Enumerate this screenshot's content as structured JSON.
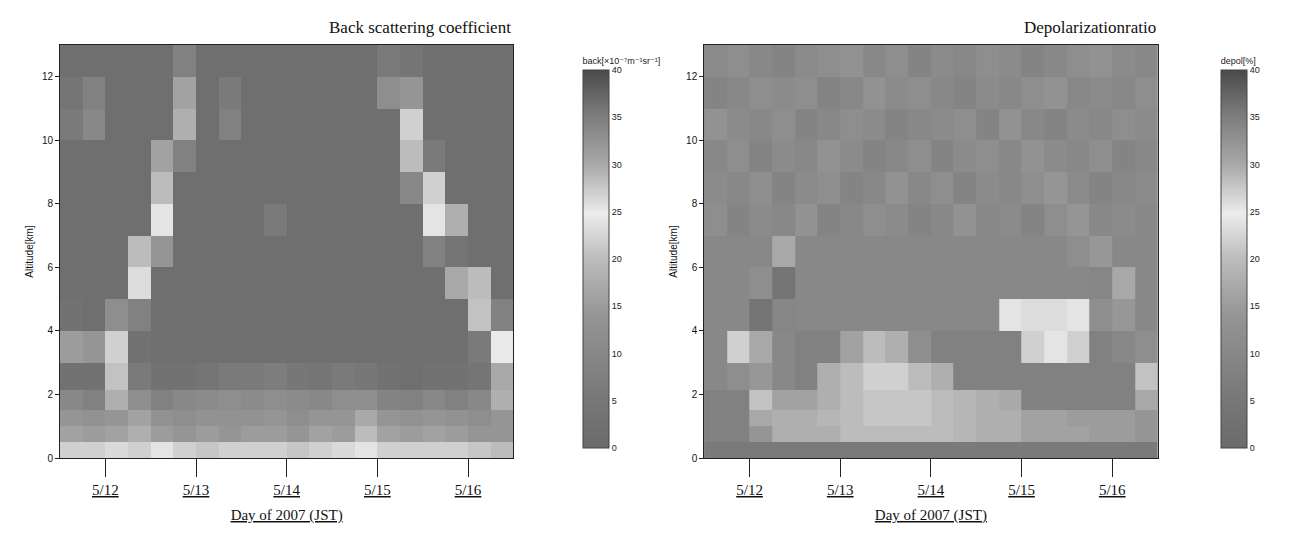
{
  "chart_data": [
    {
      "type": "heatmap",
      "title": "Back scattering coefficient",
      "x_label": "Day of 2007 (JST)",
      "y_label": "Altitude[km]",
      "x": [
        0.125,
        0.375,
        0.625,
        0.875,
        1.125,
        1.375,
        1.625,
        1.875,
        2.125,
        2.375,
        2.625,
        2.875,
        3.125,
        3.375,
        3.625,
        3.875,
        4.125,
        4.375,
        4.625,
        4.875
      ],
      "y": [
        0.25,
        0.75,
        1.25,
        1.75,
        2.5,
        3.5,
        4.5,
        5.5,
        6.5,
        7.5,
        8.5,
        9.5,
        10.5,
        11.5,
        12.5
      ],
      "z": [
        [
          22,
          22,
          23,
          22,
          24,
          22,
          21,
          22,
          22,
          22,
          21,
          22,
          23,
          24,
          22,
          22,
          22,
          22,
          21,
          20
        ],
        [
          16,
          15,
          16,
          18,
          15,
          14,
          15,
          14,
          15,
          15,
          14,
          16,
          15,
          20,
          16,
          15,
          16,
          15,
          14,
          14
        ],
        [
          14,
          13,
          14,
          16,
          13,
          12,
          13,
          13,
          13,
          14,
          12,
          14,
          14,
          17,
          14,
          13,
          14,
          13,
          12,
          14
        ],
        [
          10,
          8,
          18,
          12,
          8,
          10,
          11,
          12,
          11,
          12,
          11,
          10,
          12,
          12,
          9,
          8,
          10,
          8,
          10,
          18
        ],
        [
          3,
          3,
          28,
          6,
          3,
          3,
          4,
          6,
          6,
          7,
          5,
          4,
          6,
          5,
          3,
          2,
          3,
          3,
          4,
          30
        ],
        [
          15,
          14,
          22,
          3,
          2,
          2,
          2,
          2,
          2,
          2,
          2,
          2,
          2,
          2,
          2,
          2,
          2,
          2,
          6,
          25
        ],
        [
          3,
          2,
          12,
          8,
          2,
          2,
          2,
          2,
          2,
          2,
          2,
          2,
          2,
          2,
          2,
          2,
          2,
          2,
          28,
          8
        ],
        [
          2,
          2,
          2,
          26,
          2,
          2,
          2,
          2,
          2,
          2,
          2,
          2,
          2,
          2,
          2,
          2,
          2,
          30,
          20,
          2
        ],
        [
          2,
          2,
          2,
          20,
          14,
          2,
          2,
          2,
          2,
          2,
          2,
          2,
          2,
          2,
          2,
          2,
          8,
          36,
          2,
          2
        ],
        [
          2,
          2,
          2,
          2,
          24,
          2,
          2,
          2,
          2,
          6,
          2,
          2,
          2,
          2,
          2,
          2,
          24,
          18,
          2,
          2
        ],
        [
          2,
          2,
          2,
          2,
          20,
          2,
          2,
          2,
          2,
          2,
          2,
          2,
          2,
          2,
          2,
          10,
          22,
          2,
          2,
          2
        ],
        [
          2,
          2,
          2,
          2,
          16,
          8,
          2,
          2,
          2,
          2,
          2,
          2,
          2,
          2,
          2,
          20,
          6,
          2,
          2,
          2
        ],
        [
          6,
          10,
          2,
          2,
          2,
          18,
          2,
          8,
          2,
          2,
          2,
          2,
          2,
          2,
          2,
          22,
          2,
          2,
          2,
          2
        ],
        [
          4,
          8,
          2,
          2,
          2,
          16,
          2,
          6,
          2,
          2,
          2,
          2,
          2,
          2,
          12,
          14,
          2,
          2,
          2,
          2
        ],
        [
          2,
          2,
          2,
          2,
          2,
          8,
          2,
          2,
          2,
          2,
          2,
          2,
          2,
          2,
          6,
          4,
          2,
          2,
          2,
          2
        ]
      ],
      "xlim": [
        0,
        5
      ],
      "xticks": [
        {
          "value": 0.5,
          "label": "5/12"
        },
        {
          "value": 1.5,
          "label": "5/13"
        },
        {
          "value": 2.5,
          "label": "5/14"
        },
        {
          "value": 3.5,
          "label": "5/15"
        },
        {
          "value": 4.5,
          "label": "5/16"
        }
      ],
      "ylim": [
        0,
        13
      ],
      "yticks": [
        0,
        2,
        4,
        6,
        8,
        10,
        12
      ],
      "colorbar": {
        "title": "back[×10⁻⁷m⁻¹sr⁻¹]",
        "range": [
          0,
          40
        ],
        "ticks": [
          0,
          5,
          10,
          15,
          20,
          25,
          30,
          35,
          40
        ]
      }
    },
    {
      "type": "heatmap",
      "title": "Depolarizationratio",
      "x_label": "Day of 2007 (JST)",
      "y_label": "Altitude[km]",
      "x": [
        0.125,
        0.375,
        0.625,
        0.875,
        1.125,
        1.375,
        1.625,
        1.875,
        2.125,
        2.375,
        2.625,
        2.875,
        3.125,
        3.375,
        3.625,
        3.875,
        4.125,
        4.375,
        4.625,
        4.875
      ],
      "y": [
        0.25,
        0.75,
        1.25,
        1.75,
        2.5,
        3.5,
        4.5,
        5.5,
        6.5,
        7.5,
        8.5,
        9.5,
        10.5,
        11.5,
        12.5
      ],
      "z": [
        [
          6,
          6,
          6,
          6,
          6,
          6,
          6,
          6,
          6,
          6,
          6,
          6,
          6,
          6,
          6,
          6,
          6,
          6,
          6,
          6
        ],
        [
          8,
          8,
          14,
          18,
          18,
          18,
          20,
          20,
          20,
          20,
          20,
          19,
          18,
          18,
          16,
          16,
          16,
          15,
          15,
          14
        ],
        [
          8,
          8,
          30,
          18,
          18,
          19,
          20,
          21,
          21,
          21,
          20,
          19,
          18,
          18,
          16,
          16,
          15,
          15,
          15,
          14
        ],
        [
          8,
          8,
          28,
          16,
          16,
          18,
          20,
          21,
          21,
          21,
          20,
          19,
          18,
          17,
          8,
          8,
          8,
          8,
          8,
          30
        ],
        [
          10,
          12,
          32,
          10,
          8,
          18,
          20,
          22,
          22,
          20,
          18,
          8,
          8,
          8,
          8,
          8,
          8,
          8,
          8,
          28
        ],
        [
          10,
          22,
          30,
          10,
          8,
          8,
          16,
          20,
          18,
          12,
          8,
          8,
          8,
          8,
          22,
          24,
          22,
          8,
          10,
          12
        ],
        [
          10,
          10,
          36,
          34,
          10,
          10,
          10,
          10,
          10,
          10,
          10,
          10,
          10,
          24,
          26,
          26,
          24,
          12,
          32,
          10
        ],
        [
          10,
          10,
          12,
          36,
          10,
          10,
          10,
          10,
          10,
          10,
          10,
          10,
          10,
          10,
          10,
          10,
          10,
          34,
          30,
          10
        ],
        [
          10,
          10,
          10,
          30,
          10,
          10,
          10,
          10,
          10,
          10,
          10,
          10,
          10,
          10,
          10,
          10,
          12,
          32,
          10,
          10
        ],
        [
          12,
          9,
          11,
          10,
          13,
          9,
          10,
          12,
          11,
          9,
          10,
          13,
          10,
          11,
          9,
          12,
          14,
          10,
          11,
          10
        ],
        [
          11,
          10,
          12,
          9,
          11,
          12,
          9,
          10,
          13,
          10,
          12,
          9,
          11,
          10,
          12,
          14,
          11,
          9,
          10,
          11
        ],
        [
          10,
          12,
          9,
          11,
          10,
          13,
          11,
          9,
          10,
          12,
          9,
          11,
          12,
          10,
          13,
          11,
          10,
          12,
          9,
          10
        ],
        [
          13,
          11,
          10,
          12,
          9,
          10,
          12,
          11,
          9,
          10,
          11,
          12,
          9,
          13,
          10,
          9,
          11,
          10,
          12,
          11
        ],
        [
          9,
          10,
          12,
          11,
          12,
          9,
          10,
          13,
          11,
          12,
          10,
          9,
          11,
          10,
          12,
          13,
          10,
          11,
          10,
          12
        ],
        [
          11,
          12,
          10,
          9,
          11,
          12,
          13,
          10,
          12,
          9,
          11,
          10,
          12,
          11,
          9,
          10,
          12,
          13,
          11,
          10
        ]
      ],
      "xlim": [
        0,
        5
      ],
      "xticks": [
        {
          "value": 0.5,
          "label": "5/12"
        },
        {
          "value": 1.5,
          "label": "5/13"
        },
        {
          "value": 2.5,
          "label": "5/14"
        },
        {
          "value": 3.5,
          "label": "5/15"
        },
        {
          "value": 4.5,
          "label": "5/16"
        }
      ],
      "ylim": [
        0,
        13
      ],
      "yticks": [
        0,
        2,
        4,
        6,
        8,
        10,
        12
      ],
      "colorbar": {
        "title": "depol[%]",
        "range": [
          0,
          40
        ],
        "ticks": [
          0,
          5,
          10,
          15,
          20,
          25,
          30,
          35,
          40
        ]
      }
    }
  ]
}
